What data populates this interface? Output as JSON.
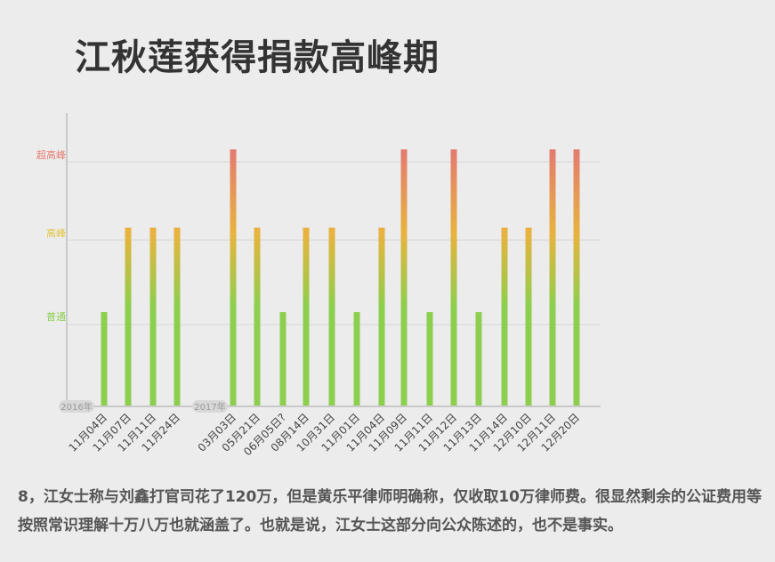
{
  "title": "江秋莲获得捐款高峰期",
  "caption": "8，江女士称与刘鑫打官司花了120万，但是黄乐平律师明确称，仅收取10万律师费。很显然剩余的公证费用等按照常识理解十万八万也就涵盖了。也就是说，江女士这部分向公众陈述的，也不是事实。",
  "chart_data": {
    "type": "bar",
    "title": "江秋莲获得捐款高峰期",
    "y_levels": [
      "普通",
      "高峰",
      "超高峰"
    ],
    "y_level_colors": [
      "#8ccf4e",
      "#e2c43a",
      "#e47a70"
    ],
    "year_markers": [
      {
        "label": "2016年",
        "before_index": 0
      },
      {
        "label": "2017年",
        "before_index": 4
      }
    ],
    "categories": [
      "11月04日",
      "11月07日",
      "11月11日",
      "11月24日",
      "03月03日",
      "05月21日",
      "06月05日?",
      "08月14日",
      "10月31日",
      "11月01日",
      "11月04日",
      "11月09日",
      "11月11日",
      "11月12日",
      "11月13日",
      "11月14日",
      "12月10日",
      "12月11日",
      "12月20日"
    ],
    "values": [
      1,
      2,
      2,
      2,
      3,
      2,
      1,
      2,
      2,
      1,
      2,
      3,
      1,
      3,
      1,
      2,
      2,
      3,
      3
    ],
    "value_meaning": "1=普通, 2=高峰, 3=超高峰",
    "grid": true,
    "legend": "none"
  }
}
